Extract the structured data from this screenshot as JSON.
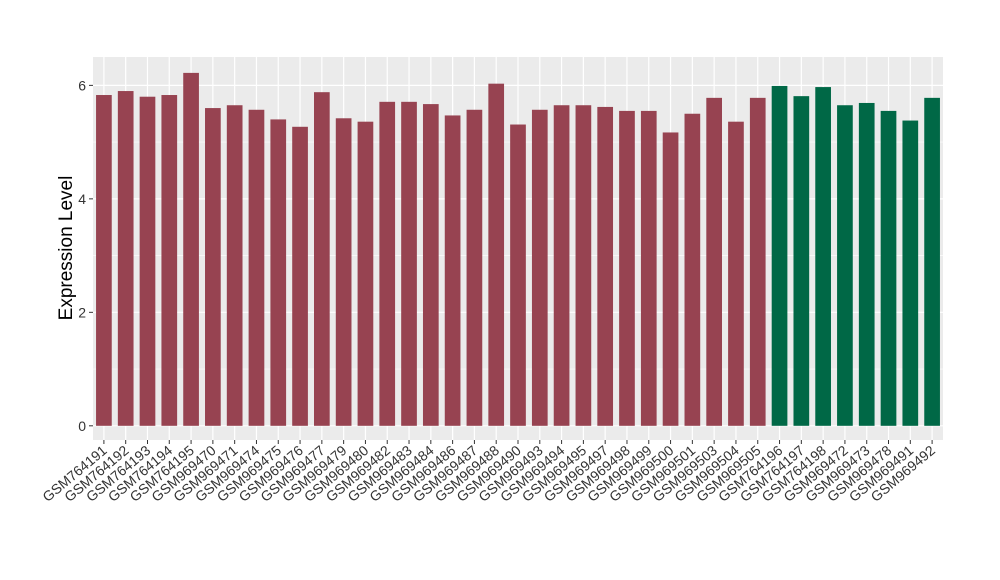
{
  "chart_data": {
    "type": "bar",
    "title": "",
    "xlabel": "",
    "ylabel": "Expression Level",
    "ylim": [
      -0.25,
      6.5
    ],
    "yticks": [
      0,
      2,
      4,
      6
    ],
    "grid": true,
    "legend": "none",
    "colors": {
      "group_a": "#974351",
      "group_b": "#006846",
      "panel": "#ebebeb",
      "gridline": "#ffffff"
    },
    "categories": [
      "GSM764191",
      "GSM764192",
      "GSM764193",
      "GSM764194",
      "GSM764195",
      "GSM969470",
      "GSM969471",
      "GSM969474",
      "GSM969475",
      "GSM969476",
      "GSM969477",
      "GSM969479",
      "GSM969480",
      "GSM969482",
      "GSM969483",
      "GSM969484",
      "GSM969486",
      "GSM969487",
      "GSM969488",
      "GSM969490",
      "GSM969493",
      "GSM969494",
      "GSM969495",
      "GSM969497",
      "GSM969498",
      "GSM969499",
      "GSM969500",
      "GSM969501",
      "GSM969503",
      "GSM969504",
      "GSM969505",
      "GSM764196",
      "GSM764197",
      "GSM764198",
      "GSM969472",
      "GSM969473",
      "GSM969478",
      "GSM969491",
      "GSM969492"
    ],
    "values": [
      5.83,
      5.9,
      5.8,
      5.83,
      6.22,
      5.6,
      5.65,
      5.57,
      5.4,
      5.27,
      5.88,
      5.42,
      5.36,
      5.71,
      5.71,
      5.67,
      5.47,
      5.57,
      6.03,
      5.31,
      5.57,
      5.65,
      5.65,
      5.62,
      5.55,
      5.55,
      5.17,
      5.5,
      5.78,
      5.36,
      5.78,
      5.99,
      5.81,
      5.97,
      5.65,
      5.69,
      5.55,
      5.38,
      5.78
    ],
    "groups": [
      "a",
      "a",
      "a",
      "a",
      "a",
      "a",
      "a",
      "a",
      "a",
      "a",
      "a",
      "a",
      "a",
      "a",
      "a",
      "a",
      "a",
      "a",
      "a",
      "a",
      "a",
      "a",
      "a",
      "a",
      "a",
      "a",
      "a",
      "a",
      "a",
      "a",
      "a",
      "b",
      "b",
      "b",
      "b",
      "b",
      "b",
      "b",
      "b"
    ]
  }
}
